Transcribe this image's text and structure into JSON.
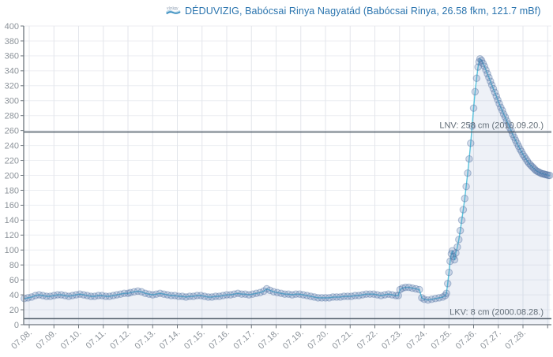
{
  "header": {
    "station_title": "DÉDUVIZIG, Babócsai Rinya Nagyatád (Babócsai Rinya, 26.58 fkm, 121.7 mBf)",
    "logo_icon": "vizugy-wave-icon"
  },
  "chart_data": {
    "type": "line",
    "title": "DÉDUVIZIG, Babócsai Rinya Nagyatád (Babócsai Rinya, 26.58 fkm, 121.7 mBf)",
    "xlabel": "",
    "ylabel": "",
    "ylim": [
      0,
      400
    ],
    "ytick_step": 20,
    "y_tick_labels": [
      "0",
      "20",
      "40",
      "60",
      "80",
      "100",
      "120",
      "140",
      "160",
      "180",
      "200",
      "220",
      "240",
      "260",
      "280",
      "300",
      "320",
      "340",
      "360",
      "380",
      "400"
    ],
    "x_tick_labels": [
      "07.08.",
      "07.09.",
      "07.10.",
      "07.11.",
      "07.12.",
      "07.13.",
      "07.14.",
      "07.15.",
      "07.16.",
      "07.17.",
      "07.18.",
      "07.19.",
      "07.20.",
      "07.21.",
      "07.22.",
      "07.23.",
      "07.24.",
      "07.25.",
      "07.26.",
      "07.27.",
      "07.28."
    ],
    "grid": true,
    "legend": "none",
    "annotations": [
      {
        "id": "LNV",
        "label": "LNV: 258 cm (2010.09.20.)",
        "value": 258
      },
      {
        "id": "LKV",
        "label": "LKV: 8 cm (2000.08.28.)",
        "value": 8
      }
    ],
    "series": [
      {
        "name": "water-level-cm",
        "points": [
          [
            -0.2,
            35
          ],
          [
            -0.05,
            36
          ],
          [
            0.1,
            37
          ],
          [
            0.25,
            39
          ],
          [
            0.4,
            40
          ],
          [
            0.55,
            39
          ],
          [
            0.7,
            38
          ],
          [
            0.85,
            38
          ],
          [
            1.0,
            39
          ],
          [
            1.15,
            40
          ],
          [
            1.3,
            40
          ],
          [
            1.45,
            39
          ],
          [
            1.6,
            38
          ],
          [
            1.75,
            39
          ],
          [
            1.9,
            40
          ],
          [
            2.05,
            41
          ],
          [
            2.2,
            40
          ],
          [
            2.35,
            39
          ],
          [
            2.5,
            38
          ],
          [
            2.65,
            38
          ],
          [
            2.8,
            39
          ],
          [
            2.95,
            39
          ],
          [
            3.1,
            38
          ],
          [
            3.25,
            38
          ],
          [
            3.4,
            39
          ],
          [
            3.55,
            40
          ],
          [
            3.7,
            41
          ],
          [
            3.85,
            42
          ],
          [
            4.0,
            42
          ],
          [
            4.1,
            43
          ],
          [
            4.25,
            44
          ],
          [
            4.4,
            45
          ],
          [
            4.55,
            44
          ],
          [
            4.7,
            42
          ],
          [
            4.85,
            41
          ],
          [
            5.0,
            40
          ],
          [
            5.15,
            41
          ],
          [
            5.3,
            42
          ],
          [
            5.45,
            41
          ],
          [
            5.6,
            40
          ],
          [
            5.75,
            39
          ],
          [
            5.9,
            39
          ],
          [
            6.05,
            38
          ],
          [
            6.2,
            38
          ],
          [
            6.35,
            37
          ],
          [
            6.5,
            38
          ],
          [
            6.65,
            38
          ],
          [
            6.8,
            39
          ],
          [
            6.95,
            39
          ],
          [
            7.1,
            38
          ],
          [
            7.25,
            37
          ],
          [
            7.4,
            37
          ],
          [
            7.55,
            38
          ],
          [
            7.7,
            38
          ],
          [
            7.85,
            39
          ],
          [
            8.0,
            40
          ],
          [
            8.15,
            40
          ],
          [
            8.3,
            41
          ],
          [
            8.45,
            42
          ],
          [
            8.6,
            41
          ],
          [
            8.75,
            41
          ],
          [
            8.9,
            40
          ],
          [
            9.05,
            41
          ],
          [
            9.2,
            42
          ],
          [
            9.35,
            43
          ],
          [
            9.5,
            45
          ],
          [
            9.62,
            48
          ],
          [
            9.75,
            46
          ],
          [
            9.9,
            44
          ],
          [
            10.05,
            43
          ],
          [
            10.2,
            42
          ],
          [
            10.35,
            41
          ],
          [
            10.5,
            41
          ],
          [
            10.65,
            40
          ],
          [
            10.8,
            41
          ],
          [
            10.95,
            41
          ],
          [
            11.1,
            40
          ],
          [
            11.25,
            39
          ],
          [
            11.4,
            38
          ],
          [
            11.55,
            37
          ],
          [
            11.7,
            36
          ],
          [
            11.85,
            36
          ],
          [
            12.0,
            36
          ],
          [
            12.15,
            36
          ],
          [
            12.3,
            37
          ],
          [
            12.45,
            37
          ],
          [
            12.6,
            37
          ],
          [
            12.75,
            38
          ],
          [
            12.9,
            38
          ],
          [
            13.05,
            38
          ],
          [
            13.2,
            39
          ],
          [
            13.35,
            39
          ],
          [
            13.5,
            40
          ],
          [
            13.65,
            41
          ],
          [
            13.8,
            41
          ],
          [
            13.95,
            41
          ],
          [
            14.1,
            40
          ],
          [
            14.25,
            39
          ],
          [
            14.4,
            40
          ],
          [
            14.55,
            41
          ],
          [
            14.7,
            40
          ],
          [
            14.85,
            39
          ],
          [
            14.95,
            39
          ],
          [
            15.02,
            47
          ],
          [
            15.12,
            49
          ],
          [
            15.24,
            50
          ],
          [
            15.38,
            50
          ],
          [
            15.52,
            49
          ],
          [
            15.66,
            48
          ],
          [
            15.8,
            47
          ],
          [
            15.9,
            36
          ],
          [
            16.0,
            34
          ],
          [
            16.15,
            33
          ],
          [
            16.3,
            34
          ],
          [
            16.45,
            35
          ],
          [
            16.6,
            36
          ],
          [
            16.75,
            37
          ],
          [
            16.85,
            39
          ],
          [
            16.9,
            42
          ],
          [
            16.95,
            55
          ],
          [
            17.0,
            70
          ],
          [
            17.05,
            85
          ],
          [
            17.1,
            95
          ],
          [
            17.14,
            99
          ],
          [
            17.18,
            91
          ],
          [
            17.23,
            87
          ],
          [
            17.28,
            96
          ],
          [
            17.34,
            104
          ],
          [
            17.4,
            114
          ],
          [
            17.46,
            126
          ],
          [
            17.52,
            140
          ],
          [
            17.58,
            154
          ],
          [
            17.64,
            169
          ],
          [
            17.7,
            185
          ],
          [
            17.76,
            203
          ],
          [
            17.82,
            222
          ],
          [
            17.88,
            243
          ],
          [
            17.94,
            266
          ],
          [
            18.0,
            290
          ],
          [
            18.06,
            312
          ],
          [
            18.12,
            330
          ],
          [
            18.18,
            345
          ],
          [
            18.22,
            352
          ],
          [
            18.26,
            356
          ],
          [
            18.32,
            354
          ],
          [
            18.38,
            350
          ],
          [
            18.44,
            346
          ],
          [
            18.5,
            341
          ],
          [
            18.56,
            336
          ],
          [
            18.62,
            331
          ],
          [
            18.68,
            326
          ],
          [
            18.74,
            321
          ],
          [
            18.8,
            316
          ],
          [
            18.86,
            311
          ],
          [
            18.92,
            306
          ],
          [
            18.98,
            301
          ],
          [
            19.04,
            296
          ],
          [
            19.1,
            291
          ],
          [
            19.16,
            287
          ],
          [
            19.22,
            282
          ],
          [
            19.28,
            278
          ],
          [
            19.34,
            273
          ],
          [
            19.4,
            269
          ],
          [
            19.46,
            264
          ],
          [
            19.52,
            260
          ],
          [
            19.58,
            255
          ],
          [
            19.64,
            251
          ],
          [
            19.7,
            247
          ],
          [
            19.76,
            243
          ],
          [
            19.82,
            239
          ],
          [
            19.88,
            235
          ],
          [
            19.94,
            232
          ],
          [
            20.0,
            228
          ],
          [
            20.06,
            225
          ],
          [
            20.12,
            222
          ],
          [
            20.18,
            219
          ],
          [
            20.24,
            216
          ],
          [
            20.3,
            214
          ],
          [
            20.36,
            212
          ],
          [
            20.42,
            210
          ],
          [
            20.48,
            208
          ],
          [
            20.54,
            206
          ],
          [
            20.6,
            205
          ],
          [
            20.66,
            204
          ],
          [
            20.72,
            203
          ],
          [
            20.78,
            202
          ],
          [
            20.84,
            202
          ],
          [
            20.9,
            201
          ],
          [
            20.96,
            201
          ],
          [
            21.02,
            200
          ],
          [
            21.08,
            200
          ]
        ]
      }
    ],
    "colors": {
      "title_text": "#2a74ae",
      "line": "#58c4de",
      "marker_fill": "rgba(88,125,175,0.25)",
      "marker_stroke": "rgba(70,105,155,0.38)",
      "area_fill": "rgba(168,183,214,0.20)",
      "grid_vertical": "#e3e6eb",
      "grid_horizontal": "#eceef2",
      "axis": "#6d757d",
      "tick_text": "#8b9299",
      "annotation_line": "#4e5a66",
      "annotation_text": "#636e78"
    }
  }
}
